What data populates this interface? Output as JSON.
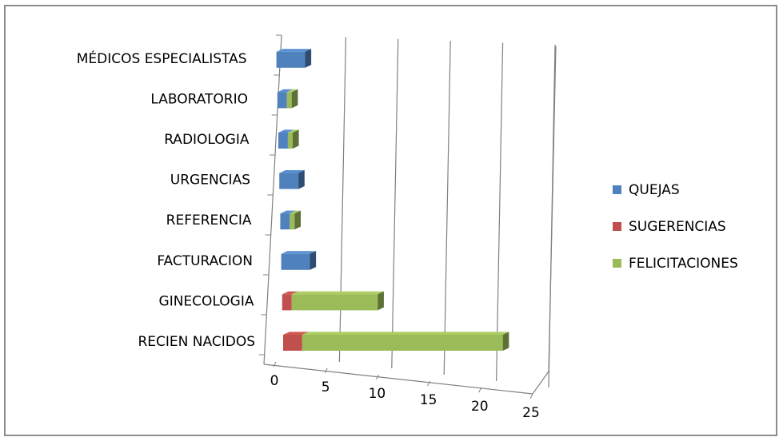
{
  "chart_data": {
    "type": "bar",
    "orientation": "horizontal",
    "stacked": true,
    "three_d": true,
    "categories": [
      "RECIEN NACIDOS",
      "GINECOLOGIA",
      "FACTURACION",
      "REFERENCIA",
      "URGENCIAS",
      "RADIOLOGIA",
      "LABORATORIO",
      "MÉDICOS ESPECIALISTAS"
    ],
    "series": [
      {
        "name": "QUEJAS",
        "color": "#4F81BD",
        "values": [
          0,
          0,
          3,
          1,
          2,
          1,
          1,
          3
        ]
      },
      {
        "name": "SUGERENCIAS",
        "color": "#C0504D",
        "values": [
          2,
          1,
          0,
          0,
          0,
          0,
          0,
          0
        ]
      },
      {
        "name": "FELICITACIONES",
        "color": "#9BBB59",
        "values": [
          21,
          9,
          0,
          0.5,
          0,
          0.5,
          0.5,
          0
        ]
      }
    ],
    "x_ticks": [
      "0",
      "5",
      "10",
      "15",
      "20",
      "25"
    ],
    "xlim": [
      0,
      25
    ],
    "grid": true,
    "legend_position": "right"
  }
}
